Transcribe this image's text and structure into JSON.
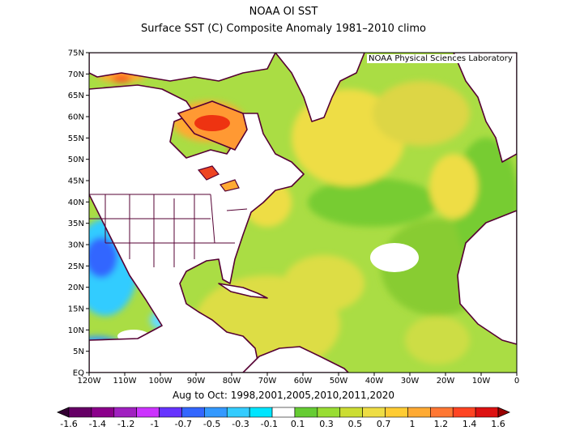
{
  "title": "NOAA OI SST",
  "subtitle": "Surface SST (C) Composite Anomaly 1981–2010 climo",
  "credit": "NOAA Physical Sciences Laboratory",
  "period": "Aug to Oct: 1998,2001,2005,2010,2011,2020",
  "lat_labels": [
    "75N",
    "70N",
    "65N",
    "60N",
    "55N",
    "50N",
    "45N",
    "40N",
    "35N",
    "30N",
    "25N",
    "20N",
    "15N",
    "10N",
    "5N",
    "EQ"
  ],
  "lon_labels": [
    "120W",
    "110W",
    "100W",
    "90W",
    "80W",
    "70W",
    "60W",
    "50W",
    "40W",
    "30W",
    "20W",
    "10W",
    "0"
  ],
  "colorbar": {
    "labels": [
      "-1.6",
      "-1.4",
      "-1.2",
      "-1",
      "-0.7",
      "-0.5",
      "-0.3",
      "-0.1",
      "0.1",
      "0.3",
      "0.5",
      "0.7",
      "1",
      "1.2",
      "1.4",
      "1.6"
    ],
    "colors": [
      "#330033",
      "#660066",
      "#8b008b",
      "#a020c0",
      "#cc33ff",
      "#6633ff",
      "#3366ff",
      "#3399ff",
      "#33ccff",
      "#00e5ff",
      "#ffffff",
      "#66cc33",
      "#99dd33",
      "#ccdd33",
      "#eedd44",
      "#ffcc33",
      "#ffaa33",
      "#ff7733",
      "#ff4422",
      "#dd1111",
      "#990000"
    ]
  },
  "colors": {
    "ocean_base": "#aadd44",
    "warm_yellow": "#eedd44",
    "orange": "#ffaa33",
    "red": "#ee3311",
    "cold_blue": "#33ccff",
    "deep_blue": "#3366ff",
    "coast": "#550033"
  }
}
